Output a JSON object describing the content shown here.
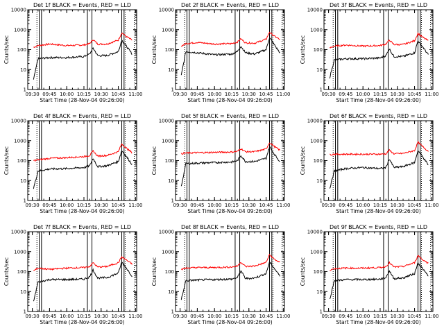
{
  "chart_data": {
    "type": "line",
    "ylabel": "Counts/sec",
    "xlabel": "Start Time (28-Nov-04 09:26:00)",
    "x_tick_labels": [
      "09:30",
      "09:45",
      "10:00",
      "10:15",
      "10:30",
      "10:45",
      "11:00"
    ],
    "y_tick_labels": [
      "1",
      "10",
      "100",
      "1000",
      "10000"
    ],
    "y_scale": "log",
    "ylim": [
      1,
      10000
    ],
    "xlim_minutes_after_start": [
      0,
      95
    ],
    "series_colors": {
      "events": "#000000",
      "lld": "#ff0000"
    },
    "panels": [
      {
        "title": "Det 1f BLACK = Events, RED = LLD",
        "time": [
          "09:31",
          "09:35",
          "09:45",
          "10:00",
          "10:15",
          "10:20",
          "10:23",
          "10:27",
          "10:35",
          "10:45",
          "10:48",
          "10:52",
          "10:57"
        ],
        "events": [
          3,
          35,
          40,
          40,
          45,
          60,
          120,
          50,
          50,
          80,
          300,
          150,
          60
        ],
        "lld": [
          130,
          160,
          190,
          160,
          170,
          200,
          320,
          190,
          190,
          300,
          700,
          450,
          300
        ]
      },
      {
        "title": "Det 2f BLACK = Events, RED = LLD",
        "time": [
          "09:31",
          "09:35",
          "09:45",
          "10:00",
          "10:15",
          "10:20",
          "10:23",
          "10:27",
          "10:35",
          "10:45",
          "10:48",
          "10:52",
          "10:57"
        ],
        "events": [
          5,
          80,
          70,
          55,
          60,
          80,
          150,
          70,
          60,
          100,
          400,
          180,
          70
        ],
        "lld": [
          150,
          200,
          230,
          190,
          200,
          240,
          350,
          220,
          210,
          330,
          750,
          480,
          320
        ]
      },
      {
        "title": "Det 3f BLACK = Events, RED = LLD",
        "time": [
          "09:31",
          "09:35",
          "09:45",
          "10:00",
          "10:15",
          "10:20",
          "10:23",
          "10:27",
          "10:35",
          "10:45",
          "10:48",
          "10:52",
          "10:57"
        ],
        "events": [
          4,
          30,
          35,
          35,
          38,
          50,
          110,
          45,
          45,
          70,
          280,
          140,
          55
        ],
        "lld": [
          120,
          150,
          170,
          150,
          160,
          190,
          300,
          180,
          180,
          280,
          650,
          420,
          280
        ]
      },
      {
        "title": "Det 4f BLACK = Events, RED = LLD",
        "time": [
          "09:31",
          "09:35",
          "09:45",
          "10:00",
          "10:15",
          "10:20",
          "10:23",
          "10:27",
          "10:35",
          "10:45",
          "10:48",
          "10:52",
          "10:57"
        ],
        "events": [
          4,
          30,
          38,
          40,
          45,
          55,
          130,
          50,
          55,
          90,
          320,
          160,
          65
        ],
        "lld": [
          100,
          110,
          130,
          140,
          160,
          180,
          300,
          170,
          180,
          280,
          700,
          420,
          250
        ]
      },
      {
        "title": "Det 5f BLACK = Events, RED = LLD",
        "time": [
          "09:31",
          "09:35",
          "09:45",
          "10:00",
          "10:15",
          "10:20",
          "10:23",
          "10:27",
          "10:35",
          "10:45",
          "10:48",
          "10:52",
          "10:57"
        ],
        "events": [
          5,
          70,
          75,
          80,
          85,
          100,
          180,
          90,
          90,
          130,
          500,
          220,
          90
        ],
        "lld": [
          220,
          240,
          250,
          260,
          270,
          290,
          400,
          280,
          280,
          380,
          800,
          520,
          330
        ]
      },
      {
        "title": "Det 6f BLACK = Events, RED = LLD",
        "time": [
          "09:31",
          "09:35",
          "09:45",
          "10:00",
          "10:15",
          "10:20",
          "10:23",
          "10:27",
          "10:35",
          "10:45",
          "10:48",
          "10:52",
          "10:57"
        ],
        "events": [
          4,
          30,
          40,
          45,
          40,
          45,
          120,
          45,
          50,
          80,
          320,
          160,
          60
        ],
        "lld": [
          200,
          210,
          210,
          210,
          210,
          220,
          330,
          220,
          230,
          320,
          850,
          500,
          300
        ]
      },
      {
        "title": "Det 7f BLACK = Events, RED = LLD",
        "time": [
          "09:31",
          "09:35",
          "09:45",
          "10:00",
          "10:15",
          "10:20",
          "10:23",
          "10:27",
          "10:35",
          "10:45",
          "10:48",
          "10:52",
          "10:57"
        ],
        "events": [
          3,
          30,
          40,
          40,
          42,
          55,
          120,
          48,
          50,
          85,
          300,
          150,
          60
        ],
        "lld": [
          110,
          150,
          130,
          150,
          160,
          180,
          280,
          170,
          180,
          280,
          550,
          380,
          240
        ]
      },
      {
        "title": "Det 8f BLACK = Events, RED = LLD",
        "time": [
          "09:31",
          "09:35",
          "09:45",
          "10:00",
          "10:15",
          "10:20",
          "10:23",
          "10:27",
          "10:35",
          "10:45",
          "10:48",
          "10:52",
          "10:57"
        ],
        "events": [
          4,
          35,
          38,
          40,
          42,
          50,
          110,
          45,
          48,
          80,
          300,
          150,
          60
        ],
        "lld": [
          130,
          150,
          160,
          160,
          170,
          190,
          300,
          180,
          190,
          290,
          700,
          430,
          280
        ]
      },
      {
        "title": "Det 9f BLACK = Events, RED = LLD",
        "time": [
          "09:31",
          "09:35",
          "09:45",
          "10:00",
          "10:15",
          "10:20",
          "10:23",
          "10:27",
          "10:35",
          "10:45",
          "10:48",
          "10:52",
          "10:57"
        ],
        "events": [
          4,
          35,
          40,
          40,
          42,
          50,
          110,
          45,
          48,
          80,
          280,
          140,
          60
        ],
        "lld": [
          120,
          140,
          150,
          150,
          160,
          180,
          280,
          170,
          180,
          280,
          650,
          400,
          260
        ]
      }
    ]
  }
}
